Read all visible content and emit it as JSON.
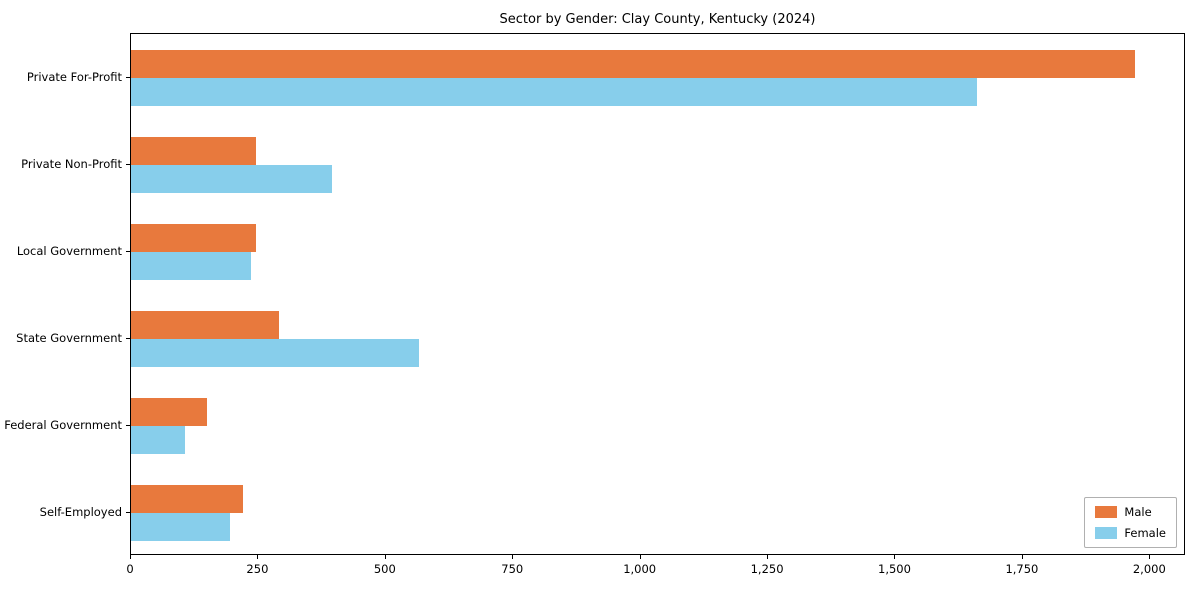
{
  "chart_data": {
    "type": "bar",
    "orientation": "horizontal",
    "title": "Sector by Gender: Clay County, Kentucky (2024)",
    "categories": [
      "Private For-Profit",
      "Private Non-Profit",
      "Local Government",
      "State Government",
      "Federal Government",
      "Self-Employed"
    ],
    "series": [
      {
        "name": "Male",
        "color": "#e8793d",
        "values": [
          1970,
          245,
          245,
          290,
          150,
          220
        ]
      },
      {
        "name": "Female",
        "color": "#87ceeb",
        "values": [
          1660,
          395,
          235,
          565,
          105,
          195
        ]
      }
    ],
    "xlim": [
      0,
      2070
    ],
    "xticks": [
      0,
      250,
      500,
      750,
      1000,
      1250,
      1500,
      1750,
      2000
    ],
    "xtick_labels": [
      "0",
      "250",
      "500",
      "750",
      "1,000",
      "1,250",
      "1,500",
      "1,750",
      "2,000"
    ],
    "legend_position": "lower right",
    "grid": false,
    "xlabel": "",
    "ylabel": ""
  }
}
